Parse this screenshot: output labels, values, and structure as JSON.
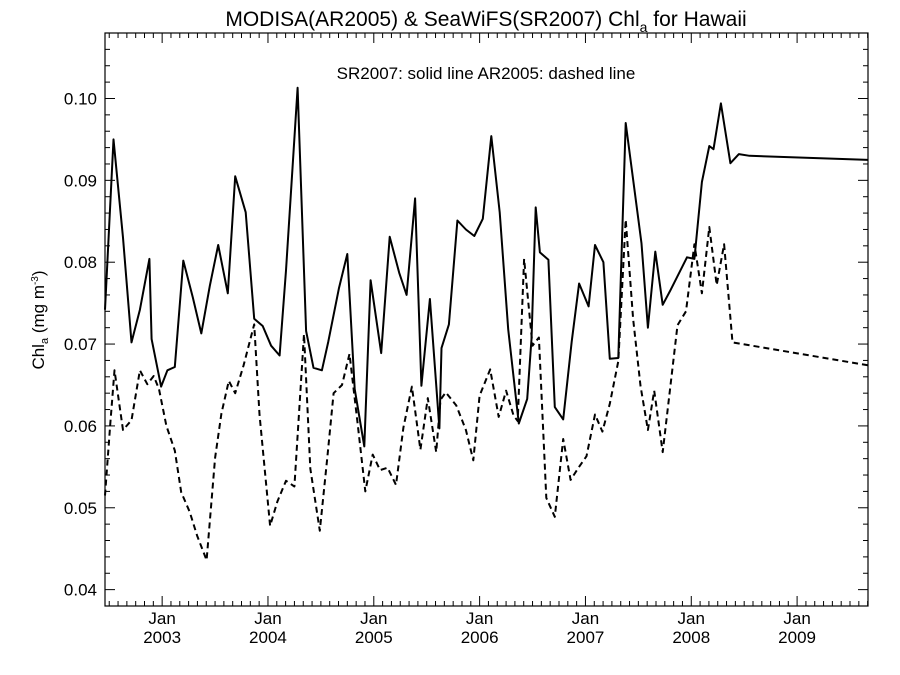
{
  "chart_data": {
    "type": "line",
    "title": "MODISA(AR2005) & SeaWiFS(SR2007)  Chl",
    "title_subscript": "a",
    "title_suffix": " for Hawaii",
    "annotation": "SR2007: solid line   AR2005: dashed line",
    "ylabel": "Chl",
    "ylabel_subscript": "a",
    "ylabel_units": " (mg m",
    "ylabel_units_sup": "-3",
    "ylabel_close": ")",
    "ylim": [
      0.038,
      0.108
    ],
    "xlim": [
      2002.46,
      2009.67
    ],
    "yticks": [
      0.04,
      0.05,
      0.06,
      0.07,
      0.08,
      0.09,
      0.1
    ],
    "ytick_labels": [
      "0.04",
      "0.05",
      "0.06",
      "0.07",
      "0.08",
      "0.09",
      "0.10"
    ],
    "xticks": [
      2003.0,
      2004.0,
      2005.0,
      2006.0,
      2007.0,
      2008.0,
      2009.0
    ],
    "xtick_month_labels": [
      "Jan",
      "Jan",
      "Jan",
      "Jan",
      "Jan",
      "Jan",
      "Jan"
    ],
    "xtick_year_labels": [
      "2003",
      "2004",
      "2005",
      "2006",
      "2007",
      "2008",
      "2009"
    ],
    "grid": false,
    "series": [
      {
        "name": "SR2007",
        "style": "solid",
        "color": "#000000",
        "points": [
          [
            2002.46,
            0.0742
          ],
          [
            2002.54,
            0.095
          ],
          [
            2002.63,
            0.083
          ],
          [
            2002.71,
            0.0702
          ],
          [
            2002.79,
            0.0742
          ],
          [
            2002.88,
            0.0804
          ],
          [
            2002.9,
            0.0706
          ],
          [
            2002.99,
            0.0648
          ],
          [
            2003.05,
            0.0668
          ],
          [
            2003.12,
            0.0672
          ],
          [
            2003.2,
            0.0802
          ],
          [
            2003.29,
            0.0757
          ],
          [
            2003.37,
            0.0713
          ],
          [
            2003.45,
            0.0771
          ],
          [
            2003.53,
            0.0821
          ],
          [
            2003.62,
            0.0762
          ],
          [
            2003.69,
            0.0905
          ],
          [
            2003.79,
            0.0861
          ],
          [
            2003.87,
            0.0731
          ],
          [
            2003.95,
            0.0722
          ],
          [
            2004.03,
            0.0698
          ],
          [
            2004.11,
            0.0686
          ],
          [
            2004.17,
            0.079
          ],
          [
            2004.28,
            0.1013
          ],
          [
            2004.36,
            0.0716
          ],
          [
            2004.43,
            0.0671
          ],
          [
            2004.51,
            0.0668
          ],
          [
            2004.57,
            0.0703
          ],
          [
            2004.67,
            0.0768
          ],
          [
            2004.75,
            0.081
          ],
          [
            2004.82,
            0.0645
          ],
          [
            2004.91,
            0.0575
          ],
          [
            2004.97,
            0.0778
          ],
          [
            2005.07,
            0.0689
          ],
          [
            2005.15,
            0.0831
          ],
          [
            2005.24,
            0.0787
          ],
          [
            2005.31,
            0.076
          ],
          [
            2005.39,
            0.0878
          ],
          [
            2005.45,
            0.0649
          ],
          [
            2005.53,
            0.0755
          ],
          [
            2005.62,
            0.0597
          ],
          [
            2005.64,
            0.0695
          ],
          [
            2005.71,
            0.0724
          ],
          [
            2005.79,
            0.0851
          ],
          [
            2005.87,
            0.084
          ],
          [
            2005.95,
            0.0832
          ],
          [
            2006.03,
            0.0853
          ],
          [
            2006.11,
            0.0954
          ],
          [
            2006.19,
            0.0861
          ],
          [
            2006.27,
            0.0718
          ],
          [
            2006.37,
            0.0603
          ],
          [
            2006.45,
            0.0633
          ],
          [
            2006.49,
            0.0706
          ],
          [
            2006.53,
            0.0867
          ],
          [
            2006.57,
            0.0812
          ],
          [
            2006.65,
            0.0803
          ],
          [
            2006.71,
            0.0623
          ],
          [
            2006.79,
            0.0608
          ],
          [
            2006.87,
            0.0703
          ],
          [
            2006.94,
            0.0774
          ],
          [
            2007.03,
            0.0746
          ],
          [
            2007.09,
            0.0821
          ],
          [
            2007.17,
            0.08
          ],
          [
            2007.23,
            0.0682
          ],
          [
            2007.31,
            0.0683
          ],
          [
            2007.38,
            0.097
          ],
          [
            2007.53,
            0.0823
          ],
          [
            2007.59,
            0.072
          ],
          [
            2007.66,
            0.0813
          ],
          [
            2007.73,
            0.0748
          ],
          [
            2007.8,
            0.0765
          ],
          [
            2007.96,
            0.0806
          ],
          [
            2008.03,
            0.0804
          ],
          [
            2008.1,
            0.0898
          ],
          [
            2008.17,
            0.0942
          ],
          [
            2008.21,
            0.0938
          ],
          [
            2008.28,
            0.0994
          ],
          [
            2008.37,
            0.0921
          ],
          [
            2008.45,
            0.0932
          ],
          [
            2008.55,
            0.093
          ],
          [
            2009.67,
            0.0925
          ]
        ]
      },
      {
        "name": "AR2005",
        "style": "dashed",
        "color": "#000000",
        "points": [
          [
            2002.46,
            0.0515
          ],
          [
            2002.51,
            0.0603
          ],
          [
            2002.55,
            0.0668
          ],
          [
            2002.63,
            0.0595
          ],
          [
            2002.71,
            0.0607
          ],
          [
            2002.79,
            0.0668
          ],
          [
            2002.86,
            0.0651
          ],
          [
            2002.92,
            0.0661
          ],
          [
            2002.97,
            0.0645
          ],
          [
            2003.04,
            0.06
          ],
          [
            2003.12,
            0.057
          ],
          [
            2003.18,
            0.0519
          ],
          [
            2003.26,
            0.0495
          ],
          [
            2003.33,
            0.0466
          ],
          [
            2003.42,
            0.0436
          ],
          [
            2003.5,
            0.0561
          ],
          [
            2003.56,
            0.0615
          ],
          [
            2003.63,
            0.0655
          ],
          [
            2003.69,
            0.064
          ],
          [
            2003.77,
            0.0674
          ],
          [
            2003.87,
            0.0724
          ],
          [
            2003.92,
            0.0614
          ],
          [
            2004.02,
            0.0478
          ],
          [
            2004.09,
            0.0508
          ],
          [
            2004.17,
            0.0533
          ],
          [
            2004.25,
            0.0526
          ],
          [
            2004.34,
            0.0712
          ],
          [
            2004.4,
            0.0548
          ],
          [
            2004.49,
            0.0472
          ],
          [
            2004.56,
            0.056
          ],
          [
            2004.62,
            0.064
          ],
          [
            2004.7,
            0.065
          ],
          [
            2004.77,
            0.0688
          ],
          [
            2004.85,
            0.06
          ],
          [
            2004.92,
            0.052
          ],
          [
            2004.99,
            0.0565
          ],
          [
            2005.06,
            0.0546
          ],
          [
            2005.13,
            0.0549
          ],
          [
            2005.21,
            0.0528
          ],
          [
            2005.28,
            0.0598
          ],
          [
            2005.36,
            0.0648
          ],
          [
            2005.44,
            0.0571
          ],
          [
            2005.51,
            0.0634
          ],
          [
            2005.59,
            0.0568
          ],
          [
            2005.63,
            0.0632
          ],
          [
            2005.68,
            0.0641
          ],
          [
            2005.78,
            0.0625
          ],
          [
            2005.87,
            0.0595
          ],
          [
            2005.94,
            0.0558
          ],
          [
            2006.0,
            0.0637
          ],
          [
            2006.1,
            0.0669
          ],
          [
            2006.18,
            0.0611
          ],
          [
            2006.25,
            0.0643
          ],
          [
            2006.32,
            0.0613
          ],
          [
            2006.36,
            0.0606
          ],
          [
            2006.42,
            0.0804
          ],
          [
            2006.5,
            0.0698
          ],
          [
            2006.56,
            0.0708
          ],
          [
            2006.63,
            0.0512
          ],
          [
            2006.71,
            0.0489
          ],
          [
            2006.79,
            0.0584
          ],
          [
            2006.86,
            0.0534
          ],
          [
            2006.94,
            0.055
          ],
          [
            2007.01,
            0.0563
          ],
          [
            2007.09,
            0.0614
          ],
          [
            2007.16,
            0.0593
          ],
          [
            2007.23,
            0.0627
          ],
          [
            2007.31,
            0.0679
          ],
          [
            2007.38,
            0.0852
          ],
          [
            2007.45,
            0.0731
          ],
          [
            2007.52,
            0.0649
          ],
          [
            2007.59,
            0.0595
          ],
          [
            2007.65,
            0.0643
          ],
          [
            2007.73,
            0.0568
          ],
          [
            2007.87,
            0.0723
          ],
          [
            2007.95,
            0.074
          ],
          [
            2008.03,
            0.0822
          ],
          [
            2008.1,
            0.0762
          ],
          [
            2008.17,
            0.0843
          ],
          [
            2008.24,
            0.0772
          ],
          [
            2008.31,
            0.0822
          ],
          [
            2008.39,
            0.0702
          ],
          [
            2009.67,
            0.0674
          ]
        ]
      }
    ]
  }
}
